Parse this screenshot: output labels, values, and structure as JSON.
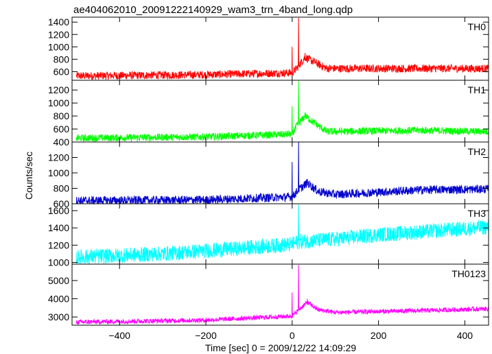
{
  "chart_data": {
    "type": "line",
    "title": "ae404062010_20091222140929_wam3_trn_4band_long.qdp",
    "xlabel": "Time [sec] 0 = 2009/12/22 14:09:29",
    "ylabel": "Counts/sec",
    "xlim": [
      -510,
      455
    ],
    "x_ticks": [
      -400,
      -200,
      0,
      200,
      400
    ],
    "x_tick_labels": [
      "−400",
      "−200",
      "0",
      "200",
      "400"
    ],
    "event_time": 15,
    "series": [
      {
        "name": "TH0",
        "color": "#ff0000",
        "ylim": [
          460,
          1480
        ],
        "y_ticks": [
          600,
          800,
          1000,
          1200,
          1400
        ],
        "y_tick_labels": [
          "600",
          "800",
          "1000",
          "1200",
          "1400"
        ],
        "noise": 80,
        "profile": [
          [
            -500,
            530
          ],
          [
            -200,
            550
          ],
          [
            0,
            580
          ],
          [
            10,
            650
          ],
          [
            30,
            830
          ],
          [
            50,
            760
          ],
          [
            80,
            650
          ],
          [
            455,
            650
          ]
        ],
        "spikes": [
          [
            0,
            1000
          ],
          [
            15,
            1470
          ],
          [
            30,
            900
          ]
        ]
      },
      {
        "name": "TH1",
        "color": "#00ff00",
        "ylim": [
          400,
          1350
        ],
        "y_ticks": [
          400,
          600,
          800,
          1000,
          1200
        ],
        "y_tick_labels": [
          "400",
          "600",
          "800",
          "1000",
          "1200"
        ],
        "noise": 70,
        "profile": [
          [
            -500,
            460
          ],
          [
            -200,
            480
          ],
          [
            0,
            520
          ],
          [
            10,
            640
          ],
          [
            30,
            800
          ],
          [
            50,
            700
          ],
          [
            80,
            560
          ],
          [
            300,
            580
          ],
          [
            455,
            560
          ]
        ],
        "spikes": [
          [
            0,
            950
          ],
          [
            15,
            1340
          ],
          [
            30,
            850
          ]
        ]
      },
      {
        "name": "TH2",
        "color": "#0000cc",
        "ylim": [
          600,
          1400
        ],
        "y_ticks": [
          600,
          800,
          1000,
          1200
        ],
        "y_tick_labels": [
          "600",
          "800",
          "1000",
          "1200"
        ],
        "noise": 70,
        "profile": [
          [
            -500,
            640
          ],
          [
            -200,
            650
          ],
          [
            0,
            690
          ],
          [
            15,
            780
          ],
          [
            35,
            870
          ],
          [
            60,
            760
          ],
          [
            100,
            720
          ],
          [
            300,
            780
          ],
          [
            455,
            790
          ]
        ],
        "spikes": [
          [
            0,
            1140
          ],
          [
            15,
            1400
          ],
          [
            35,
            920
          ]
        ]
      },
      {
        "name": "TH3",
        "color": "#00ffff",
        "ylim": [
          980,
          1680
        ],
        "y_ticks": [
          1000,
          1200,
          1400,
          1600
        ],
        "y_tick_labels": [
          "1000",
          "1200",
          "1400",
          "1600"
        ],
        "noise": 110,
        "profile": [
          [
            -500,
            1060
          ],
          [
            -300,
            1100
          ],
          [
            -100,
            1170
          ],
          [
            0,
            1210
          ],
          [
            15,
            1240
          ],
          [
            100,
            1270
          ],
          [
            200,
            1320
          ],
          [
            455,
            1410
          ]
        ],
        "spikes": [
          [
            15,
            1670
          ]
        ]
      },
      {
        "name": "TH0123",
        "color": "#ff00ff",
        "ylim": [
          2550,
          5900
        ],
        "y_ticks": [
          3000,
          4000,
          5000
        ],
        "y_tick_labels": [
          "3000",
          "4000",
          "5000"
        ],
        "noise": 160,
        "profile": [
          [
            -500,
            2720
          ],
          [
            -200,
            2830
          ],
          [
            0,
            3050
          ],
          [
            15,
            3400
          ],
          [
            35,
            3800
          ],
          [
            60,
            3400
          ],
          [
            100,
            3250
          ],
          [
            300,
            3350
          ],
          [
            455,
            3450
          ]
        ],
        "spikes": [
          [
            0,
            4350
          ],
          [
            15,
            5850
          ],
          [
            35,
            4000
          ]
        ]
      }
    ]
  }
}
